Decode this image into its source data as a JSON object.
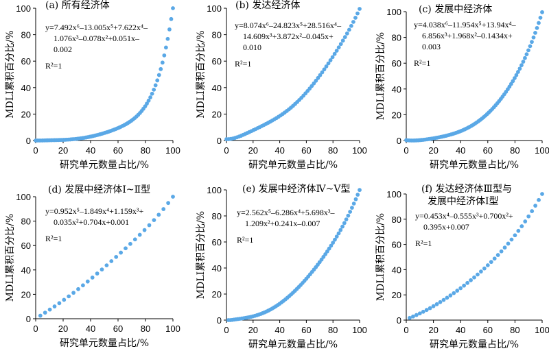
{
  "chart_data": [
    {
      "type": "scatter",
      "title": "(a) 所有经济体",
      "xlabel": "研究单元数量占比/%",
      "ylabel": "MDLI累积百分比/%",
      "xlim": [
        0,
        100
      ],
      "ylim": [
        0,
        100
      ],
      "xticks": [
        "0",
        "20",
        "40",
        "60",
        "80",
        "100"
      ],
      "yticks": [
        "0",
        "20",
        "40",
        "60",
        "80",
        "100"
      ],
      "equation_lines": [
        "y=7.492x⁶–13.005x⁵+7.622x⁴–",
        "1.076x³–0.078x²+0.051x–",
        "0.002"
      ],
      "r2": "R²=1",
      "coef": [
        7.492,
        -13.005,
        7.622,
        -1.076,
        -0.078,
        0.051,
        -0.002
      ],
      "n_points": 80,
      "x_start": 0,
      "color": "#5aa8e6"
    },
    {
      "type": "scatter",
      "title": "(b) 发达经济体",
      "xlabel": "研究单元数量占比/%",
      "ylabel": "MDLI累积百分比/%",
      "xlim": [
        0,
        100
      ],
      "ylim": [
        0,
        100
      ],
      "xticks": [
        "0",
        "20",
        "40",
        "60",
        "80",
        "100"
      ],
      "yticks": [
        "0",
        "20",
        "40",
        "60",
        "80",
        "100"
      ],
      "equation_lines": [
        "y=8.074x⁶–24.823x⁵+28.516x⁴–",
        "14.609x³+3.872x²–0.045x+",
        "0.010"
      ],
      "r2": "R²=1",
      "coef": [
        8.074,
        -24.823,
        28.516,
        -14.609,
        3.872,
        -0.045,
        0.01
      ],
      "n_points": 65,
      "x_start": 0,
      "color": "#5aa8e6"
    },
    {
      "type": "scatter",
      "title": "(c) 发展中经济体",
      "xlabel": "研究单元数量占比/%",
      "ylabel": "MDLI累积百分比/%",
      "xlim": [
        0,
        100
      ],
      "ylim": [
        0,
        100
      ],
      "xticks": [
        "0",
        "20",
        "40",
        "60",
        "80",
        "100"
      ],
      "yticks": [
        "0",
        "20",
        "40",
        "60",
        "80",
        "100"
      ],
      "equation_lines": [
        "y=4.038x⁶–11.954x⁵+13.94x⁴–",
        "6.856x³+1.968x²–0.1434x+",
        "0.003"
      ],
      "r2": "R²=1",
      "coef": [
        4.038,
        -11.954,
        13.94,
        -6.856,
        1.968,
        -0.1434,
        0.003
      ],
      "n_points": 80,
      "x_start": 0,
      "color": "#5aa8e6"
    },
    {
      "type": "scatter",
      "title": "(d) 发展中经济体Ⅰ~Ⅱ型",
      "xlabel": "研究单元数量占比/%",
      "ylabel": "MDLI累积百分比/%",
      "xlim": [
        0,
        100
      ],
      "ylim": [
        0,
        100
      ],
      "xticks": [
        "0",
        "20",
        "40",
        "60",
        "80",
        "100"
      ],
      "yticks": [
        "0",
        "20",
        "40",
        "60",
        "80",
        "100"
      ],
      "equation_lines": [
        "y=0.952x⁵–1.849x⁴+1.159x³+",
        "0.035x²+0.704x+0.001"
      ],
      "r2": "R²=1",
      "coef": [
        0.952,
        -1.849,
        1.159,
        0.035,
        0.704,
        0.001
      ],
      "n_points": 29,
      "x_start": 3.4,
      "color": "#5aa8e6"
    },
    {
      "type": "scatter",
      "title": "(e) 发展中经济体Ⅳ~Ⅴ型",
      "xlabel": "研究单元数量占比/%",
      "ylabel": "MDLI累积百分比/%",
      "xlim": [
        0,
        100
      ],
      "ylim": [
        0,
        100
      ],
      "xticks": [
        "0",
        "20",
        "40",
        "60",
        "80",
        "100"
      ],
      "yticks": [
        "0",
        "20",
        "40",
        "60",
        "80",
        "100"
      ],
      "equation_lines": [
        "y=2.562x⁵–6.286x⁴+5.698x³–",
        "1.209x²+0.241x–0.007"
      ],
      "r2": "R²=1",
      "coef": [
        2.562,
        -6.286,
        5.698,
        -1.209,
        0.241,
        -0.007
      ],
      "n_points": 70,
      "x_start": 1.4,
      "color": "#5aa8e6"
    },
    {
      "type": "scatter",
      "title_lines": [
        "(f) 发达经济体Ⅲ型与",
        "发展中经济体Ⅰ型"
      ],
      "xlabel": "研究单元数量占比/%",
      "ylabel": "MDLI累积百分比/%",
      "xlim": [
        0,
        100
      ],
      "ylim": [
        0,
        100
      ],
      "xticks": [
        "0",
        "20",
        "40",
        "60",
        "80",
        "100"
      ],
      "yticks": [
        "0",
        "20",
        "40",
        "60",
        "80",
        "100"
      ],
      "equation_lines": [
        "y=0.453x⁴–0.555x³+0.700x²+",
        "0.395x+0.007"
      ],
      "r2": "R²=1",
      "coef": [
        0.453,
        -0.555,
        0.7,
        0.395,
        0.007
      ],
      "n_points": 40,
      "x_start": 2.5,
      "color": "#5aa8e6"
    }
  ]
}
